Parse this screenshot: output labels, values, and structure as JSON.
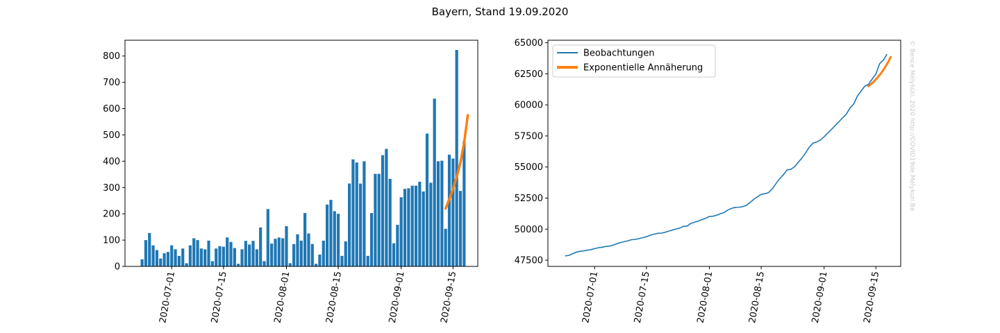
{
  "figure": {
    "suptitle": "Bayern, Stand 19.09.2020",
    "watermark": "© Bence Mélykúti, 2020  http://COVID19de.Melykuti.Be"
  },
  "chart_data": [
    {
      "type": "bar",
      "title": "",
      "xlabel": "",
      "ylabel": "",
      "x_start_date": "2020-06-23",
      "ylim": [
        0,
        860
      ],
      "yticks": [
        0,
        100,
        200,
        300,
        400,
        500,
        600,
        700,
        800
      ],
      "xtick_labels": [
        "2020-07-01",
        "2020-07-15",
        "2020-08-01",
        "2020-08-15",
        "2020-09-01",
        "2020-09-15"
      ],
      "colors": {
        "bar": "#1f77b4",
        "fit": "#ff7f0e"
      },
      "series": [
        {
          "values": [
            27,
            100,
            127,
            80,
            62,
            30,
            50,
            55,
            80,
            65,
            40,
            68,
            12,
            80,
            107,
            100,
            68,
            65,
            98,
            20,
            68,
            77,
            75,
            110,
            93,
            70,
            10,
            65,
            97,
            83,
            97,
            65,
            148,
            20,
            218,
            87,
            105,
            110,
            107,
            153,
            12,
            85,
            122,
            98,
            203,
            125,
            85,
            10,
            45,
            98,
            235,
            253,
            210,
            200,
            40,
            95,
            315,
            407,
            395,
            315,
            400,
            40,
            203,
            352,
            352,
            423,
            447,
            333,
            88,
            158,
            263,
            295,
            297,
            307,
            307,
            322,
            285,
            505,
            318,
            638,
            400,
            402,
            143,
            425,
            410,
            823,
            287,
            475
          ]
        },
        {
          "name": "",
          "type": "line",
          "x": [
            "2020-09-13",
            "2020-09-14",
            "2020-09-15",
            "2020-09-16",
            "2020-09-17",
            "2020-09-18",
            "2020-09-19"
          ],
          "values": [
            220,
            255,
            295,
            340,
            395,
            470,
            575
          ]
        }
      ]
    },
    {
      "type": "line",
      "title": "",
      "xlabel": "",
      "ylabel": "",
      "x_start_date": "2020-06-23",
      "ylim": [
        47000,
        65200
      ],
      "yticks": [
        47500,
        50000,
        52500,
        55000,
        57500,
        60000,
        62500,
        65000
      ],
      "xtick_labels": [
        "2020-07-01",
        "2020-07-15",
        "2020-08-01",
        "2020-08-15",
        "2020-09-01",
        "2020-09-15"
      ],
      "legend": {
        "position": "upper-left",
        "entries": [
          "Beobachtungen",
          "Exponentielle Annäherung"
        ]
      },
      "colors": {
        "obs": "#1f77b4",
        "fit": "#ff7f0e"
      },
      "series": [
        {
          "name": "Beobachtungen",
          "values": [
            47850,
            47880,
            48010,
            48140,
            48210,
            48250,
            48300,
            48350,
            48430,
            48500,
            48540,
            48610,
            48630,
            48710,
            48820,
            48920,
            48990,
            49060,
            49150,
            49170,
            49240,
            49310,
            49390,
            49500,
            49590,
            49660,
            49680,
            49740,
            49840,
            49920,
            50010,
            50080,
            50220,
            50250,
            50460,
            50550,
            50650,
            50760,
            50870,
            51020,
            51040,
            51120,
            51240,
            51340,
            51540,
            51670,
            51750,
            51760,
            51810,
            51910,
            52140,
            52400,
            52600,
            52800,
            52850,
            52940,
            53250,
            53660,
            54060,
            54370,
            54770,
            54810,
            55010,
            55370,
            55720,
            56140,
            56590,
            56920,
            57010,
            57170,
            57430,
            57730,
            58030,
            58330,
            58640,
            58960,
            59250,
            59750,
            60070,
            60710,
            61110,
            61510,
            61650,
            62080,
            62490,
            63310,
            63600,
            64070
          ]
        },
        {
          "name": "Exponentielle Annäherung",
          "x": [
            "2020-09-13",
            "2020-09-14",
            "2020-09-15",
            "2020-09-16",
            "2020-09-17",
            "2020-09-18",
            "2020-09-19"
          ],
          "values": [
            61500,
            61750,
            62050,
            62400,
            62800,
            63280,
            63850
          ]
        }
      ]
    }
  ]
}
